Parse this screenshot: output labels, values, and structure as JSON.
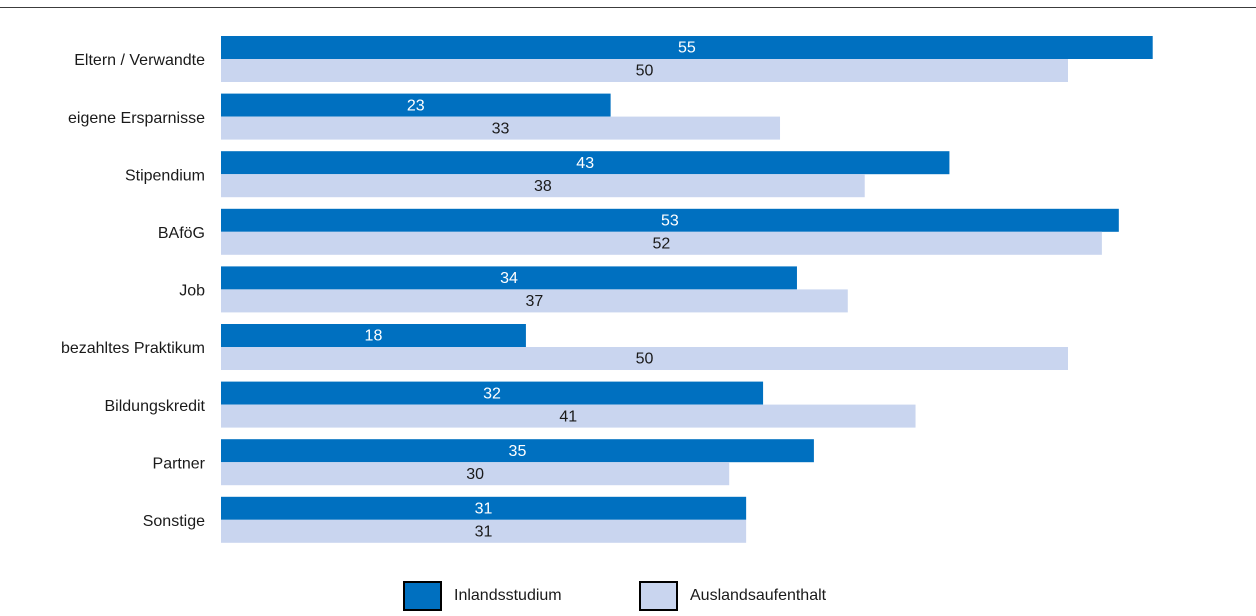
{
  "chart_data": {
    "type": "bar",
    "orientation": "horizontal",
    "title": "",
    "xlabel": "",
    "ylabel": "",
    "xlim": [
      0,
      60
    ],
    "grid": false,
    "legend_placement": "bottom-center",
    "categories": [
      "Eltern / Verwandte",
      "eigene Ersparnisse",
      "Stipendium",
      "BAföG",
      "Job",
      "bezahltes Praktikum",
      "Bildungskredit",
      "Partner",
      "Sonstige"
    ],
    "series": [
      {
        "name": "Inlandsstudium",
        "color": "#0070c0",
        "label_color": "#ffffff",
        "values": [
          55,
          23,
          43,
          53,
          34,
          18,
          32,
          35,
          31
        ]
      },
      {
        "name": "Auslandsaufenthalt",
        "color": "#c9d5ef",
        "label_color": "#1a1a1a",
        "values": [
          50,
          33,
          38,
          52,
          37,
          50,
          41,
          30,
          31
        ]
      }
    ]
  }
}
